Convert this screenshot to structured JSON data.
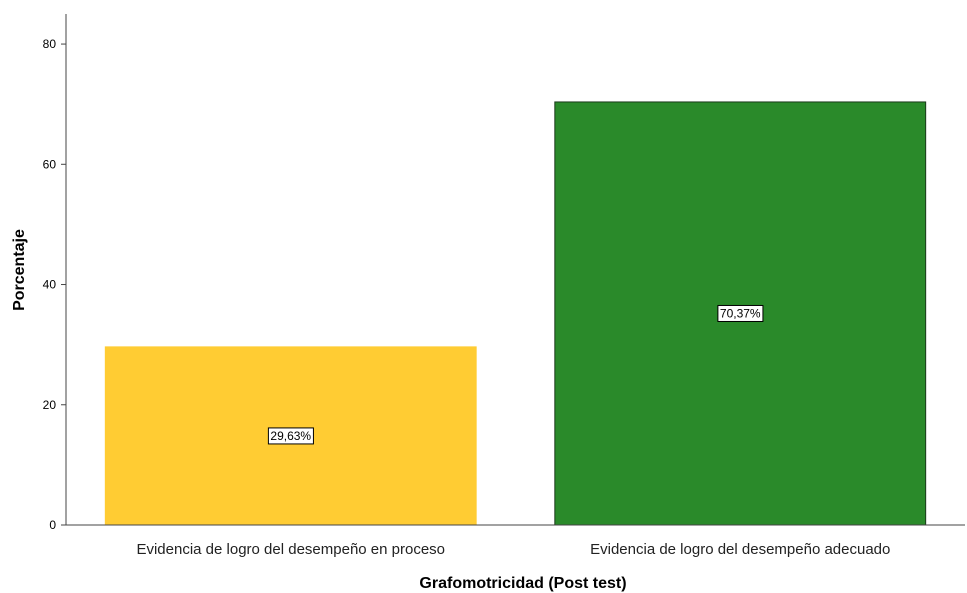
{
  "chart_data": {
    "type": "bar",
    "categories": [
      "Evidencia de logro del desempeño en proceso",
      "Evidencia de logro del desempeño adecuado"
    ],
    "values": [
      29.63,
      70.37
    ],
    "data_labels": [
      "29,63%",
      "70,37%"
    ],
    "colors": [
      "#FFCC33",
      "#2A8A2A"
    ],
    "xlabel": "Grafomotricidad (Post test)",
    "ylabel": "Porcentaje",
    "ylim": [
      0,
      85
    ],
    "yticks": [
      0,
      20,
      40,
      60,
      80
    ],
    "ytick_labels": [
      "0",
      "20",
      "40",
      "60",
      "80"
    ],
    "grid": false,
    "legend": "none"
  }
}
